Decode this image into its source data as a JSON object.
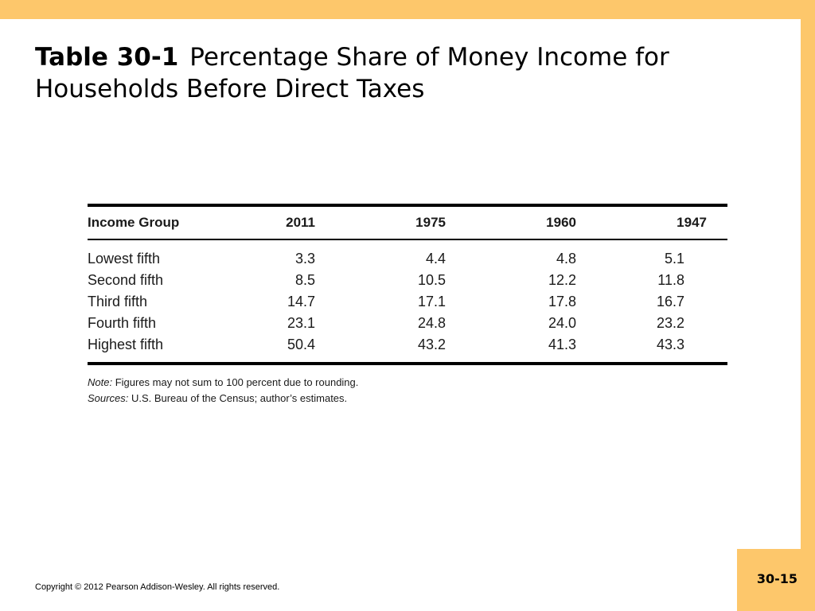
{
  "slide": {
    "title_number": "Table 30-1",
    "title_text": "Percentage Share of Money Income for Households Before Direct Taxes",
    "copyright": "Copyright © 2012 Pearson Addison-Wesley. All rights reserved.",
    "page_number": "30-15"
  },
  "table": {
    "headers": [
      "Income Group",
      "2011",
      "1975",
      "1960",
      "1947"
    ],
    "rows": [
      [
        "Lowest fifth",
        "3.3",
        "4.4",
        "4.8",
        "5.1"
      ],
      [
        "Second fifth",
        "8.5",
        "10.5",
        "12.2",
        "11.8"
      ],
      [
        "Third fifth",
        "14.7",
        "17.1",
        "17.8",
        "16.7"
      ],
      [
        "Fourth fifth",
        "23.1",
        "24.8",
        "24.0",
        "23.2"
      ],
      [
        "Highest fifth",
        "50.4",
        "43.2",
        "41.3",
        "43.3"
      ]
    ],
    "note_label": "Note:",
    "note_text": "Figures may not sum to 100 percent due to rounding.",
    "sources_label": "Sources:",
    "sources_text": "U.S. Bureau of the Census; author’s estimates."
  },
  "colors": {
    "border_accent": "#fdc76b",
    "background": "#ffffff"
  }
}
